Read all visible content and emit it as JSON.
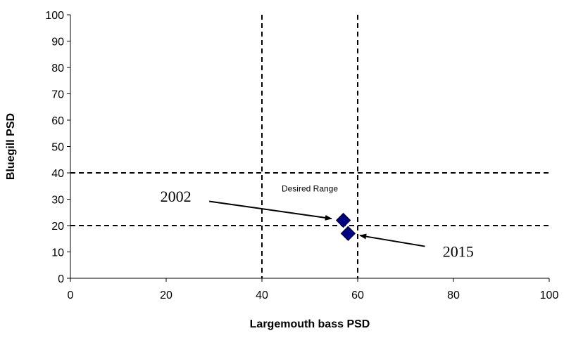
{
  "chart_data": {
    "type": "scatter",
    "xlabel": "Largemouth bass PSD",
    "ylabel": "Bluegill PSD",
    "xlim": [
      0,
      100
    ],
    "ylim": [
      0,
      100
    ],
    "xticks": [
      0,
      20,
      40,
      60,
      80,
      100
    ],
    "yticks": [
      0,
      10,
      20,
      30,
      40,
      50,
      60,
      70,
      80,
      90,
      100
    ],
    "grid": false,
    "marker_color": "#000080",
    "series": [
      {
        "points": [
          {
            "x": 57,
            "y": 22
          },
          {
            "x": 58,
            "y": 17
          }
        ]
      }
    ],
    "reference_lines": {
      "vertical": [
        40,
        60
      ],
      "horizontal": [
        20,
        40
      ],
      "style": "dashed"
    },
    "region_label": {
      "text": "Desired Range",
      "x": 50,
      "y": 33
    },
    "annotations": [
      {
        "text": "2002",
        "label_at": {
          "x": 22,
          "y": 31
        },
        "points_to": {
          "x": 57,
          "y": 22
        }
      },
      {
        "text": "2015",
        "label_at": {
          "x": 81,
          "y": 10
        },
        "points_to": {
          "x": 58,
          "y": 17
        }
      }
    ]
  }
}
